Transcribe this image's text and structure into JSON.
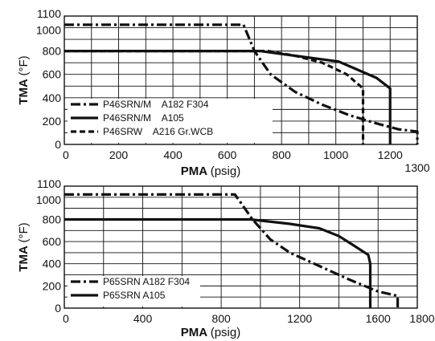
{
  "chart_data": [
    {
      "type": "line",
      "xlabel": "PMA",
      "xunit": "(psig)",
      "ylabel": "TMA",
      "yunit": "(°F)",
      "xlim": [
        0,
        1300
      ],
      "ylim": [
        0,
        1100
      ],
      "x_ticks": [
        0,
        200,
        400,
        600,
        800,
        1000,
        1200
      ],
      "x_tick_labels": [
        "0",
        "200",
        "400",
        "600",
        "800",
        "1000",
        "1200"
      ],
      "x_end_label": "1300",
      "y_ticks": [
        0,
        200,
        400,
        600,
        800,
        1000,
        1100
      ],
      "y_tick_labels": [
        "0",
        "200",
        "400",
        "600",
        "800",
        "1000",
        "1100"
      ],
      "grid": true,
      "legend_position": "bottom-left",
      "series": [
        {
          "name": "P46SRN/M    A182 F304",
          "style": "dashdot",
          "points": [
            [
              0,
              1025
            ],
            [
              660,
              1025
            ],
            [
              700,
              800
            ],
            [
              760,
              600
            ],
            [
              850,
              450
            ],
            [
              950,
              340
            ],
            [
              1050,
              250
            ],
            [
              1150,
              180
            ],
            [
              1230,
              130
            ],
            [
              1300,
              110
            ],
            [
              1300,
              0
            ]
          ]
        },
        {
          "name": "P46SRN/M    A105",
          "style": "solid",
          "points": [
            [
              0,
              800
            ],
            [
              720,
              800
            ],
            [
              850,
              760
            ],
            [
              1010,
              710
            ],
            [
              1080,
              640
            ],
            [
              1150,
              570
            ],
            [
              1200,
              480
            ],
            [
              1200,
              0
            ]
          ]
        },
        {
          "name": "P46SRW    A216 Gr.WCB",
          "style": "dashed",
          "points": [
            [
              0,
              800
            ],
            [
              750,
              800
            ],
            [
              850,
              760
            ],
            [
              950,
              700
            ],
            [
              1040,
              600
            ],
            [
              1100,
              480
            ],
            [
              1100,
              0
            ]
          ]
        }
      ]
    },
    {
      "type": "line",
      "xlabel": "PMA",
      "xunit": "(psig)",
      "ylabel": "TMA",
      "yunit": "(°F)",
      "xlim": [
        0,
        1800
      ],
      "ylim": [
        0,
        1100
      ],
      "x_ticks": [
        0,
        400,
        800,
        1200,
        1600,
        1800
      ],
      "x_tick_labels": [
        "0",
        "400",
        "800",
        "1200",
        "1600",
        "1800"
      ],
      "y_ticks": [
        0,
        200,
        400,
        600,
        800,
        1000,
        1100
      ],
      "y_tick_labels": [
        "0",
        "200",
        "400",
        "600",
        "800",
        "1000",
        "1100"
      ],
      "grid": true,
      "legend_position": "bottom-left",
      "series": [
        {
          "name": "P65SRN A182 F304",
          "style": "dashdot",
          "points": [
            [
              0,
              1025
            ],
            [
              870,
              1025
            ],
            [
              960,
              800
            ],
            [
              1050,
              620
            ],
            [
              1150,
              500
            ],
            [
              1300,
              380
            ],
            [
              1450,
              260
            ],
            [
              1600,
              150
            ],
            [
              1700,
              110
            ],
            [
              1700,
              0
            ]
          ]
        },
        {
          "name": "P65SRN A105",
          "style": "solid",
          "points": [
            [
              0,
              800
            ],
            [
              950,
              800
            ],
            [
              1150,
              760
            ],
            [
              1300,
              720
            ],
            [
              1400,
              650
            ],
            [
              1480,
              560
            ],
            [
              1550,
              480
            ],
            [
              1560,
              400
            ],
            [
              1560,
              0
            ]
          ]
        }
      ]
    }
  ]
}
